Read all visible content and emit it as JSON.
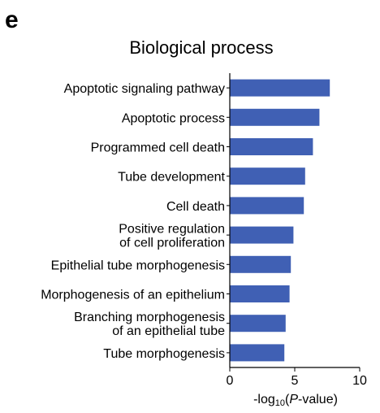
{
  "panel_label": "e",
  "chart_data": {
    "type": "bar",
    "orientation": "horizontal",
    "title": "Biological process",
    "xlabel_parts": [
      "-log",
      "10",
      "(",
      "P",
      "-value)"
    ],
    "xlim": [
      0,
      10
    ],
    "xticks": [
      "0",
      "5",
      "10"
    ],
    "bar_color": "#4060b4",
    "categories": [
      [
        "Apoptotic signaling pathway"
      ],
      [
        "Apoptotic process"
      ],
      [
        "Programmed cell death"
      ],
      [
        "Tube development"
      ],
      [
        "Cell death"
      ],
      [
        "Positive regulation",
        "of cell proliferation"
      ],
      [
        "Epithelial tube morphogenesis"
      ],
      [
        "Morphogenesis of an epithelium"
      ],
      [
        "Branching morphogenesis",
        "of an epithelial tube"
      ],
      [
        "Tube morphogenesis"
      ]
    ],
    "values": [
      7.7,
      6.9,
      6.4,
      5.8,
      5.7,
      4.9,
      4.7,
      4.6,
      4.3,
      4.2
    ],
    "grid": false,
    "legend": "none"
  }
}
